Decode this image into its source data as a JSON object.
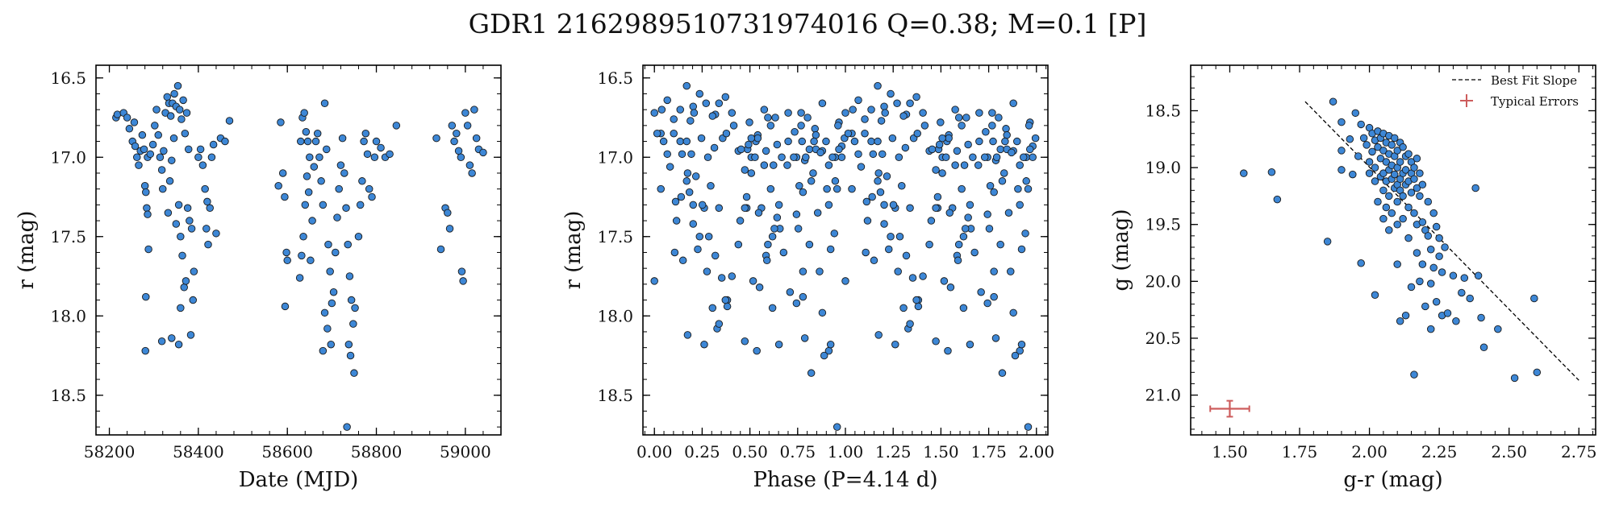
{
  "title": "GDR1 2162989510731974016  Q=0.38; M=0.1 [P]",
  "marker": {
    "fill": "#3d87d6",
    "edge": "#1a1a1a",
    "errorbar": "#cd5c5c",
    "fitline": "#000000"
  },
  "chart_data": [
    {
      "type": "scatter",
      "xlabel": "Date (MJD)",
      "ylabel": "r (mag)",
      "xlim": [
        58170,
        59080
      ],
      "ylim": [
        18.75,
        16.42
      ],
      "y_inverted": true,
      "xticks": [
        58200,
        58400,
        58600,
        58800,
        59000
      ],
      "xtick_labels": [
        "58200",
        "58400",
        "58600",
        "58800",
        "59000"
      ],
      "yticks": [
        16.5,
        17.0,
        17.5,
        18.0,
        18.5
      ],
      "ytick_labels": [
        "16.5",
        "17.0",
        "17.5",
        "18.0",
        "18.5"
      ],
      "points": [
        [
          58215,
          16.75
        ],
        [
          58218,
          16.73
        ],
        [
          58232,
          16.72
        ],
        [
          58240,
          16.75
        ],
        [
          58245,
          16.82
        ],
        [
          58252,
          16.9
        ],
        [
          58256,
          16.78
        ],
        [
          58258,
          16.93
        ],
        [
          58262,
          17.0
        ],
        [
          58266,
          17.05
        ],
        [
          58270,
          16.96
        ],
        [
          58274,
          16.86
        ],
        [
          58278,
          16.95
        ],
        [
          58280,
          17.18
        ],
        [
          58282,
          17.22
        ],
        [
          58284,
          17.32
        ],
        [
          58286,
          17.36
        ],
        [
          58288,
          17.58
        ],
        [
          58282,
          17.88
        ],
        [
          58281,
          18.22
        ],
        [
          58286,
          17.0
        ],
        [
          58292,
          16.98
        ],
        [
          58298,
          16.92
        ],
        [
          58302,
          16.8
        ],
        [
          58306,
          16.7
        ],
        [
          58310,
          16.86
        ],
        [
          58314,
          17.0
        ],
        [
          58318,
          17.08
        ],
        [
          58320,
          17.2
        ],
        [
          58322,
          16.96
        ],
        [
          58326,
          16.72
        ],
        [
          58330,
          16.62
        ],
        [
          58334,
          16.66
        ],
        [
          58338,
          16.74
        ],
        [
          58342,
          16.66
        ],
        [
          58346,
          16.6
        ],
        [
          58350,
          16.68
        ],
        [
          58354,
          16.55
        ],
        [
          58358,
          16.7
        ],
        [
          58362,
          16.76
        ],
        [
          58366,
          16.64
        ],
        [
          58370,
          16.85
        ],
        [
          58374,
          16.72
        ],
        [
          58378,
          16.95
        ],
        [
          58345,
          16.88
        ],
        [
          58340,
          17.02
        ],
        [
          58336,
          17.15
        ],
        [
          58332,
          17.35
        ],
        [
          58350,
          17.42
        ],
        [
          58356,
          17.3
        ],
        [
          58360,
          17.5
        ],
        [
          58364,
          17.62
        ],
        [
          58368,
          17.82
        ],
        [
          58372,
          17.78
        ],
        [
          58376,
          17.32
        ],
        [
          58380,
          17.4
        ],
        [
          58385,
          17.45
        ],
        [
          58390,
          17.72
        ],
        [
          58388,
          17.9
        ],
        [
          58383,
          18.12
        ],
        [
          58340,
          18.14
        ],
        [
          58356,
          18.18
        ],
        [
          58318,
          18.16
        ],
        [
          58360,
          17.95
        ],
        [
          58400,
          17.0
        ],
        [
          58405,
          16.95
        ],
        [
          58410,
          17.05
        ],
        [
          58415,
          17.2
        ],
        [
          58420,
          17.28
        ],
        [
          58418,
          17.45
        ],
        [
          58422,
          17.55
        ],
        [
          58426,
          17.32
        ],
        [
          58430,
          17.0
        ],
        [
          58434,
          16.92
        ],
        [
          58440,
          17.48
        ],
        [
          58450,
          16.88
        ],
        [
          58460,
          16.9
        ],
        [
          58470,
          16.77
        ],
        [
          58580,
          17.18
        ],
        [
          58585,
          16.78
        ],
        [
          58590,
          17.1
        ],
        [
          58594,
          17.25
        ],
        [
          58598,
          17.6
        ],
        [
          58595,
          17.94
        ],
        [
          58600,
          17.65
        ],
        [
          58630,
          16.9
        ],
        [
          58634,
          16.75
        ],
        [
          58638,
          16.72
        ],
        [
          58642,
          16.84
        ],
        [
          58646,
          16.9
        ],
        [
          58650,
          17.0
        ],
        [
          58644,
          17.12
        ],
        [
          58648,
          17.22
        ],
        [
          58640,
          17.3
        ],
        [
          58636,
          17.5
        ],
        [
          58632,
          17.62
        ],
        [
          58628,
          17.76
        ],
        [
          58652,
          17.65
        ],
        [
          58656,
          17.4
        ],
        [
          58660,
          17.06
        ],
        [
          58664,
          16.9
        ],
        [
          58668,
          16.85
        ],
        [
          58672,
          17.0
        ],
        [
          58676,
          17.15
        ],
        [
          58680,
          17.3
        ],
        [
          58684,
          16.66
        ],
        [
          58688,
          16.95
        ],
        [
          58692,
          17.55
        ],
        [
          58696,
          17.72
        ],
        [
          58700,
          17.92
        ],
        [
          58684,
          17.98
        ],
        [
          58690,
          18.08
        ],
        [
          58680,
          18.22
        ],
        [
          58698,
          18.18
        ],
        [
          58704,
          17.85
        ],
        [
          58708,
          17.6
        ],
        [
          58712,
          17.38
        ],
        [
          58716,
          17.2
        ],
        [
          58720,
          17.05
        ],
        [
          58724,
          16.88
        ],
        [
          58728,
          17.1
        ],
        [
          58732,
          17.32
        ],
        [
          58736,
          17.55
        ],
        [
          58740,
          17.75
        ],
        [
          58744,
          17.9
        ],
        [
          58748,
          18.05
        ],
        [
          58752,
          17.95
        ],
        [
          58738,
          18.18
        ],
        [
          58742,
          18.25
        ],
        [
          58750,
          18.36
        ],
        [
          58734,
          18.7
        ],
        [
          58760,
          17.5
        ],
        [
          58764,
          17.3
        ],
        [
          58768,
          17.15
        ],
        [
          58772,
          16.9
        ],
        [
          58776,
          16.85
        ],
        [
          58780,
          16.98
        ],
        [
          58784,
          17.2
        ],
        [
          58790,
          17.25
        ],
        [
          58796,
          17.0
        ],
        [
          58800,
          16.9
        ],
        [
          58810,
          16.94
        ],
        [
          58820,
          17.0
        ],
        [
          58830,
          16.98
        ],
        [
          58845,
          16.8
        ],
        [
          58935,
          16.88
        ],
        [
          58945,
          17.58
        ],
        [
          58955,
          17.32
        ],
        [
          58960,
          17.35
        ],
        [
          58965,
          17.45
        ],
        [
          58970,
          16.8
        ],
        [
          58975,
          16.9
        ],
        [
          58980,
          16.85
        ],
        [
          58985,
          16.96
        ],
        [
          58990,
          17.0
        ],
        [
          58992,
          17.72
        ],
        [
          58995,
          17.78
        ],
        [
          59000,
          16.72
        ],
        [
          59005,
          16.8
        ],
        [
          59010,
          17.05
        ],
        [
          59015,
          17.1
        ],
        [
          59020,
          16.7
        ],
        [
          59025,
          16.88
        ],
        [
          59030,
          16.95
        ],
        [
          59040,
          16.97
        ]
      ]
    },
    {
      "type": "scatter",
      "xlabel": "Phase (P=4.14 d)",
      "ylabel": "r (mag)",
      "xlim": [
        -0.06,
        2.06
      ],
      "ylim": [
        18.75,
        16.42
      ],
      "y_inverted": true,
      "period_days": 4.14,
      "xticks": [
        0.0,
        0.25,
        0.5,
        0.75,
        1.0,
        1.25,
        1.5,
        1.75,
        2.0
      ],
      "xtick_labels": [
        "0.00",
        "0.25",
        "0.50",
        "0.75",
        "1.00",
        "1.25",
        "1.50",
        "1.75",
        "2.00"
      ],
      "yticks": [
        16.5,
        17.0,
        17.5,
        18.0,
        18.5
      ],
      "ytick_labels": [
        "16.5",
        "17.0",
        "17.5",
        "18.0",
        "18.5"
      ]
    },
    {
      "type": "scatter",
      "xlabel": "g-r (mag)",
      "ylabel": "g (mag)",
      "xlim": [
        1.36,
        2.81
      ],
      "ylim": [
        21.35,
        18.1
      ],
      "y_inverted": true,
      "xticks": [
        1.5,
        1.75,
        2.0,
        2.25,
        2.5,
        2.75
      ],
      "xtick_labels": [
        "1.50",
        "1.75",
        "2.00",
        "2.25",
        "2.50",
        "2.75"
      ],
      "yticks": [
        18.5,
        19.0,
        19.5,
        20.0,
        20.5,
        21.0
      ],
      "ytick_labels": [
        "18.5",
        "19.0",
        "19.5",
        "20.0",
        "20.5",
        "21.0"
      ],
      "legend": {
        "position": "top-right",
        "entries": [
          {
            "label": "Best Fit Slope",
            "style": "dashed-line"
          },
          {
            "label": "Typical Errors",
            "style": "errorbar"
          }
        ]
      },
      "fit_line": {
        "x": [
          1.77,
          2.75
        ],
        "y": [
          18.42,
          20.87
        ]
      },
      "typical_error": {
        "x": 1.5,
        "y": 21.12,
        "xerr": 0.07,
        "yerr": 0.07
      },
      "points": [
        [
          1.55,
          19.05
        ],
        [
          1.65,
          19.04
        ],
        [
          1.67,
          19.28
        ],
        [
          1.85,
          19.65
        ],
        [
          1.87,
          18.42
        ],
        [
          1.9,
          18.6
        ],
        [
          1.9,
          18.85
        ],
        [
          1.9,
          19.02
        ],
        [
          1.93,
          18.75
        ],
        [
          1.94,
          19.06
        ],
        [
          1.95,
          18.52
        ],
        [
          1.96,
          18.9
        ],
        [
          1.97,
          19.84
        ],
        [
          1.97,
          18.62
        ],
        [
          1.98,
          18.74
        ],
        [
          1.99,
          18.8
        ],
        [
          2.0,
          18.65
        ],
        [
          2.0,
          18.95
        ],
        [
          2.0,
          19.05
        ],
        [
          2.01,
          18.7
        ],
        [
          2.01,
          18.86
        ],
        [
          2.02,
          18.76
        ],
        [
          2.02,
          19.0
        ],
        [
          2.02,
          19.12
        ],
        [
          2.02,
          20.12
        ],
        [
          2.03,
          18.68
        ],
        [
          2.03,
          18.82
        ],
        [
          2.03,
          19.3
        ],
        [
          2.04,
          18.74
        ],
        [
          2.04,
          18.92
        ],
        [
          2.04,
          19.08
        ],
        [
          2.05,
          18.7
        ],
        [
          2.05,
          18.85
        ],
        [
          2.05,
          19.05
        ],
        [
          2.05,
          19.2
        ],
        [
          2.05,
          19.45
        ],
        [
          2.06,
          18.78
        ],
        [
          2.06,
          18.95
        ],
        [
          2.06,
          19.12
        ],
        [
          2.06,
          19.35
        ],
        [
          2.07,
          18.72
        ],
        [
          2.07,
          18.88
        ],
        [
          2.07,
          19.02
        ],
        [
          2.07,
          19.25
        ],
        [
          2.07,
          19.55
        ],
        [
          2.08,
          18.8
        ],
        [
          2.08,
          18.98
        ],
        [
          2.08,
          19.1
        ],
        [
          2.08,
          19.4
        ],
        [
          2.09,
          18.74
        ],
        [
          2.09,
          18.9
        ],
        [
          2.09,
          19.06
        ],
        [
          2.09,
          19.18
        ],
        [
          2.1,
          18.85
        ],
        [
          2.1,
          19.0
        ],
        [
          2.1,
          19.15
        ],
        [
          2.1,
          19.3
        ],
        [
          2.1,
          19.5
        ],
        [
          2.1,
          19.85
        ],
        [
          2.11,
          18.78
        ],
        [
          2.11,
          18.95
        ],
        [
          2.11,
          19.1
        ],
        [
          2.11,
          19.2
        ],
        [
          2.11,
          20.35
        ],
        [
          2.12,
          18.82
        ],
        [
          2.12,
          19.05
        ],
        [
          2.12,
          19.25
        ],
        [
          2.12,
          19.45
        ],
        [
          2.13,
          18.9
        ],
        [
          2.13,
          19.02
        ],
        [
          2.13,
          19.15
        ],
        [
          2.13,
          20.3
        ],
        [
          2.14,
          18.88
        ],
        [
          2.14,
          19.12
        ],
        [
          2.14,
          19.35
        ],
        [
          2.14,
          19.62
        ],
        [
          2.15,
          18.95
        ],
        [
          2.15,
          19.05
        ],
        [
          2.15,
          19.22
        ],
        [
          2.15,
          20.05
        ],
        [
          2.16,
          19.0
        ],
        [
          2.16,
          19.1
        ],
        [
          2.16,
          19.4
        ],
        [
          2.16,
          20.82
        ],
        [
          2.17,
          18.92
        ],
        [
          2.17,
          19.18
        ],
        [
          2.17,
          19.5
        ],
        [
          2.17,
          19.75
        ],
        [
          2.18,
          19.05
        ],
        [
          2.18,
          19.25
        ],
        [
          2.18,
          20.0
        ],
        [
          2.19,
          19.15
        ],
        [
          2.19,
          19.48
        ],
        [
          2.19,
          19.85
        ],
        [
          2.2,
          19.55
        ],
        [
          2.2,
          20.22
        ],
        [
          2.21,
          19.3
        ],
        [
          2.21,
          19.6
        ],
        [
          2.22,
          19.72
        ],
        [
          2.22,
          20.02
        ],
        [
          2.22,
          20.42
        ],
        [
          2.23,
          19.4
        ],
        [
          2.23,
          19.88
        ],
        [
          2.24,
          19.52
        ],
        [
          2.24,
          20.18
        ],
        [
          2.25,
          19.62
        ],
        [
          2.25,
          19.78
        ],
        [
          2.26,
          19.92
        ],
        [
          2.26,
          20.3
        ],
        [
          2.27,
          19.7
        ],
        [
          2.28,
          20.28
        ],
        [
          2.3,
          19.95
        ],
        [
          2.31,
          20.35
        ],
        [
          2.33,
          20.1
        ],
        [
          2.34,
          19.97
        ],
        [
          2.36,
          20.15
        ],
        [
          2.38,
          19.18
        ],
        [
          2.39,
          19.95
        ],
        [
          2.4,
          20.32
        ],
        [
          2.41,
          20.58
        ],
        [
          2.46,
          20.42
        ],
        [
          2.52,
          20.85
        ],
        [
          2.59,
          20.15
        ],
        [
          2.6,
          20.8
        ]
      ]
    }
  ]
}
